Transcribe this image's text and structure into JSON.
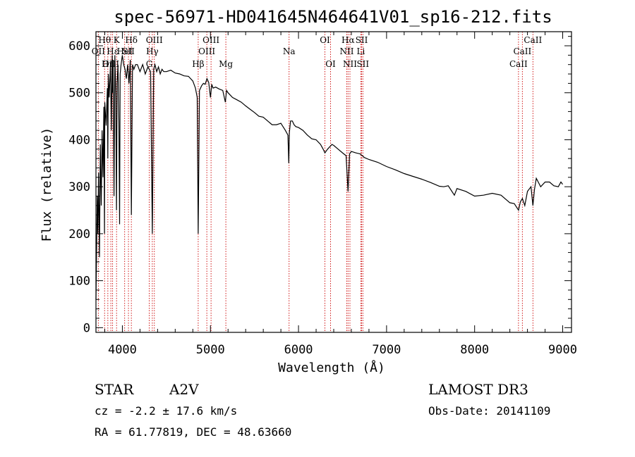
{
  "chart_data": {
    "type": "line",
    "title": "spec-56971-HD041645N464641V01_sp16-212.fits",
    "xlabel": "Wavelength (Å)",
    "ylabel": "Flux (relative)",
    "xlim": [
      3700,
      9100
    ],
    "ylim": [
      -10,
      630
    ],
    "xticks": [
      4000,
      5000,
      6000,
      7000,
      8000,
      9000
    ],
    "yticks": [
      0,
      100,
      200,
      300,
      400,
      500,
      600
    ],
    "series": [
      {
        "name": "spectrum",
        "x": [
          3700,
          3705,
          3715,
          3722,
          3730,
          3740,
          3750,
          3760,
          3770,
          3780,
          3790,
          3797,
          3800,
          3815,
          3830,
          3835,
          3840,
          3850,
          3865,
          3875,
          3885,
          3889,
          3895,
          3905,
          3915,
          3925,
          3933,
          3940,
          3950,
          3960,
          3968,
          3975,
          3985,
          4000,
          4015,
          4030,
          4045,
          4060,
          4075,
          4090,
          4102,
          4115,
          4130,
          4150,
          4170,
          4200,
          4230,
          4260,
          4290,
          4320,
          4340,
          4355,
          4370,
          4390,
          4410,
          4430,
          4450,
          4470,
          4500,
          4550,
          4600,
          4650,
          4700,
          4750,
          4800,
          4830,
          4850,
          4861,
          4875,
          4900,
          4920,
          4940,
          4960,
          4980,
          5000,
          5015,
          5030,
          5060,
          5100,
          5140,
          5169,
          5183,
          5200,
          5250,
          5300,
          5350,
          5400,
          5450,
          5500,
          5550,
          5600,
          5650,
          5700,
          5750,
          5800,
          5850,
          5880,
          5890,
          5896,
          5910,
          5930,
          5950,
          5970,
          6000,
          6050,
          6100,
          6150,
          6200,
          6250,
          6280,
          6300,
          6330,
          6380,
          6400,
          6450,
          6500,
          6540,
          6563,
          6580,
          6600,
          6650,
          6700,
          6750,
          6800,
          6900,
          7000,
          7100,
          7200,
          7300,
          7400,
          7500,
          7600,
          7650,
          7700,
          7770,
          7800,
          7900,
          8000,
          8100,
          8200,
          8300,
          8400,
          8450,
          8498,
          8520,
          8542,
          8570,
          8600,
          8640,
          8662,
          8680,
          8700,
          8750,
          8800,
          8850,
          8900,
          8950,
          8980,
          9000
        ],
        "values": [
          60,
          130,
          280,
          200,
          330,
          150,
          390,
          260,
          420,
          320,
          470,
          200,
          480,
          430,
          510,
          360,
          540,
          490,
          560,
          420,
          580,
          500,
          570,
          280,
          580,
          490,
          250,
          520,
          560,
          440,
          220,
          540,
          560,
          580,
          560,
          550,
          530,
          560,
          520,
          570,
          240,
          560,
          550,
          560,
          560,
          545,
          560,
          540,
          555,
          545,
          200,
          550,
          560,
          545,
          555,
          540,
          550,
          545,
          545,
          548,
          542,
          540,
          536,
          535,
          525,
          510,
          490,
          200,
          505,
          515,
          520,
          518,
          530,
          522,
          490,
          518,
          510,
          512,
          508,
          505,
          480,
          505,
          500,
          490,
          485,
          480,
          472,
          465,
          458,
          450,
          448,
          440,
          432,
          432,
          435,
          420,
          410,
          350,
          415,
          440,
          440,
          432,
          428,
          426,
          420,
          410,
          402,
          400,
          390,
          380,
          372,
          380,
          390,
          388,
          380,
          372,
          366,
          290,
          370,
          375,
          372,
          370,
          362,
          358,
          352,
          343,
          336,
          328,
          322,
          316,
          309,
          301,
          300,
          302,
          282,
          296,
          290,
          280,
          282,
          286,
          282,
          266,
          264,
          250,
          268,
          275,
          260,
          290,
          300,
          260,
          295,
          318,
          300,
          310,
          310,
          302,
          300,
          310,
          305
        ]
      }
    ],
    "line_markers": [
      {
        "label": "Hθ",
        "x": 3798,
        "row": 1
      },
      {
        "label": "K",
        "x": 3934,
        "row": 1
      },
      {
        "label": "Hδ",
        "x": 4102,
        "row": 1
      },
      {
        "label": "OIII",
        "x": 4363,
        "row": 1
      },
      {
        "label": "OIII",
        "x": 5007,
        "row": 1
      },
      {
        "label": "OI",
        "x": 6300,
        "row": 1
      },
      {
        "label": "Hα",
        "x": 6563,
        "row": 1
      },
      {
        "label": "SII",
        "x": 6717,
        "row": 1
      },
      {
        "label": "CaII",
        "x": 8662,
        "row": 1
      },
      {
        "label": "OII",
        "x": 3727,
        "row": 2
      },
      {
        "label": "Hε",
        "x": 3889,
        "row": 2
      },
      {
        "label": "HeI",
        "x": 4026,
        "row": 2
      },
      {
        "label": "SII",
        "x": 4069,
        "row": 2
      },
      {
        "label": "Hγ",
        "x": 4340,
        "row": 2
      },
      {
        "label": "OIII",
        "x": 4959,
        "row": 2
      },
      {
        "label": "Na",
        "x": 5893,
        "row": 2
      },
      {
        "label": "NII",
        "x": 6548,
        "row": 2
      },
      {
        "label": "Li",
        "x": 6708,
        "row": 2
      },
      {
        "label": "CaII",
        "x": 8542,
        "row": 2
      },
      {
        "label": "OIII",
        "x": 3869,
        "row": 3
      },
      {
        "label": "Hη",
        "x": 3835,
        "row": 3
      },
      {
        "label": "G",
        "x": 4305,
        "row": 3
      },
      {
        "label": "Hβ",
        "x": 4861,
        "row": 3
      },
      {
        "label": "Mg",
        "x": 5175,
        "row": 3
      },
      {
        "label": "OI",
        "x": 6364,
        "row": 3
      },
      {
        "label": "NII",
        "x": 6584,
        "row": 3
      },
      {
        "label": "SII",
        "x": 6731,
        "row": 3
      },
      {
        "label": "CaII",
        "x": 8498,
        "row": 3
      }
    ],
    "marker_color": "#cc0000",
    "line_color": "#000000"
  },
  "info": {
    "object_type": "STAR",
    "spectral_class": "A2V",
    "survey": "LAMOST DR3",
    "redshift_line": "cz = -2.2 ± 17.6 km/s",
    "obs_date_line": "Obs-Date: 20141109",
    "coords_line": "RA =  61.77819, DEC =  48.63660"
  }
}
